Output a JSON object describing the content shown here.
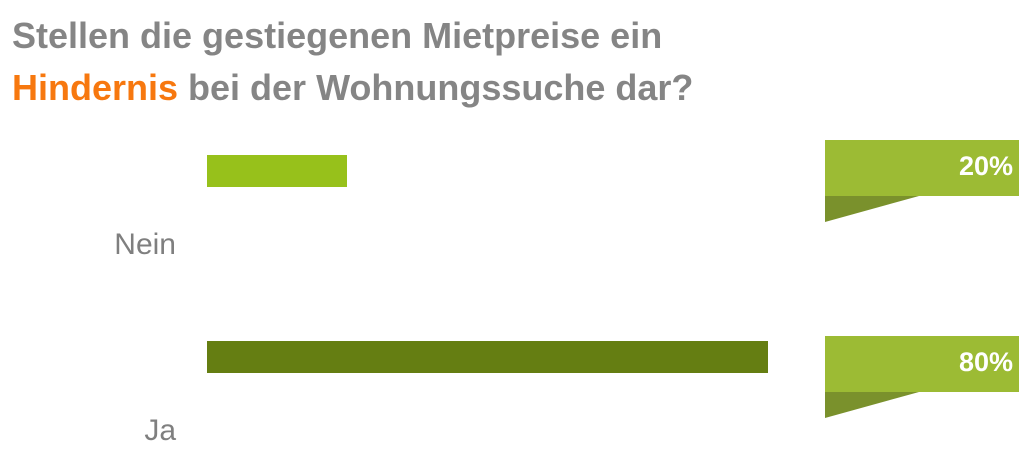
{
  "title": {
    "line1": "Stellen die gestiegenen Mietpreise ein",
    "highlight": "Hindernis",
    "line2_rest": " bei der Wohnungssuche dar?"
  },
  "colors": {
    "title_gray": "#858585",
    "highlight_orange": "#f7780f",
    "bar_nein": "#97c11b",
    "bar_ja": "#657e12",
    "badge_light": "#9cbb34",
    "badge_dark": "#7a912c",
    "label_gray": "#7f7f7f"
  },
  "chart_data": {
    "type": "bar",
    "orientation": "horizontal",
    "title": "Stellen die gestiegenen Mietpreise ein Hindernis bei der Wohnungssuche dar?",
    "categories": [
      "Nein",
      "Ja"
    ],
    "values": [
      20,
      80
    ],
    "value_labels": [
      "20%",
      "80%"
    ],
    "xlim": [
      0,
      80
    ],
    "unit": "%",
    "grid": false,
    "legend": "none"
  }
}
